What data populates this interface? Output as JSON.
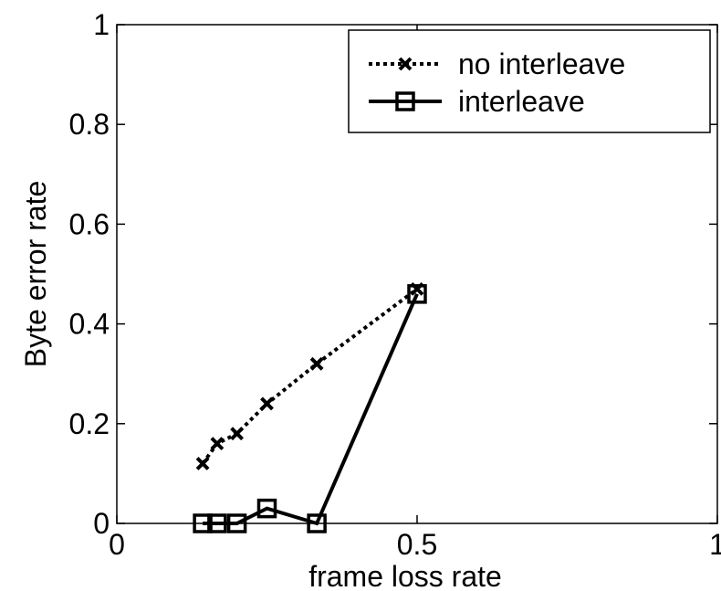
{
  "chart_data": {
    "type": "line",
    "title": "",
    "xlabel": "frame loss rate",
    "ylabel": "Byte error rate",
    "xlim": [
      0,
      1
    ],
    "ylim": [
      0,
      1
    ],
    "xticks": [
      0,
      0.5,
      1
    ],
    "xtick_labels": [
      "0",
      "0.5",
      "1"
    ],
    "yticks": [
      0,
      0.2,
      0.4,
      0.6,
      0.8,
      1
    ],
    "ytick_labels": [
      "0",
      "0.2",
      "0.4",
      "0.6",
      "0.8",
      "1"
    ],
    "grid": false,
    "legend_position": "top-right",
    "series": [
      {
        "name": "no interleave",
        "line_style": "dotted",
        "marker": "x",
        "color": "#000000",
        "x": [
          0.143,
          0.167,
          0.2,
          0.25,
          0.333,
          0.5
        ],
        "y": [
          0.12,
          0.16,
          0.18,
          0.24,
          0.32,
          0.47
        ]
      },
      {
        "name": "interleave",
        "line_style": "solid",
        "marker": "square",
        "color": "#000000",
        "x": [
          0.143,
          0.167,
          0.2,
          0.25,
          0.333,
          0.5
        ],
        "y": [
          0.0,
          0.0,
          0.0,
          0.03,
          0.0,
          0.46
        ]
      }
    ]
  }
}
